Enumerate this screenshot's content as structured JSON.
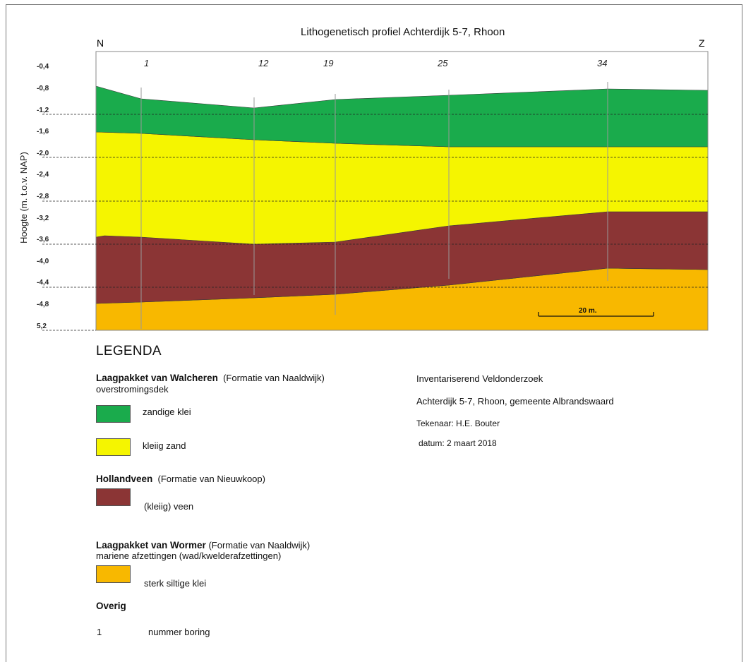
{
  "diagram": {
    "title": "Lithogenetisch profiel Achterdijk 5-7, Rhoon",
    "direction_left": "N",
    "direction_right": "Z",
    "y_axis_label": "Hoogte (m. t.o.v. NAP)",
    "y_ticks": [
      "-0,4",
      "-0,8",
      "-1,2",
      "-1,6",
      "-2,0",
      "-2,4",
      "-2,8",
      "-3,2",
      "-3,6",
      "-4,0",
      "-4,4",
      "-4,8",
      "5,2"
    ],
    "borings": [
      "1",
      "12",
      "19",
      "25",
      "34"
    ],
    "scale_label": "20 m.",
    "colors": {
      "zandige_klei": "#1aab4c",
      "kleiig_zand": "#f5f500",
      "veen": "#8b3535",
      "siltige_klei": "#f8b800"
    }
  },
  "legend": {
    "heading": "LEGENDA",
    "walcheren": {
      "title_bold": "Laagpakket van Walcheren",
      "title_rest": "(Formatie van Naaldwijk)",
      "subtitle": "overstromingsdek",
      "items": [
        "zandige klei",
        "kleiig zand"
      ]
    },
    "hollandveen": {
      "title_bold": "Hollandveen",
      "title_rest": "(Formatie van Nieuwkoop)",
      "item": "(kleiig) veen"
    },
    "wormer": {
      "title_bold": "Laagpakket van Wormer",
      "title_rest": "(Formatie van Naaldwijk)",
      "subtitle": "mariene afzettingen (wad/kwelderafzettingen)",
      "item": "sterk siltige klei"
    },
    "overig": {
      "title": "Overig",
      "number": "1",
      "label": "nummer boring"
    }
  },
  "info": {
    "line1": "Inventariserend Veldonderzoek",
    "line2": "Achterdijk 5-7, Rhoon, gemeente Albrandswaard",
    "line3": "Tekenaar: H.E. Bouter",
    "line4": "datum: 2 maart 2018"
  }
}
